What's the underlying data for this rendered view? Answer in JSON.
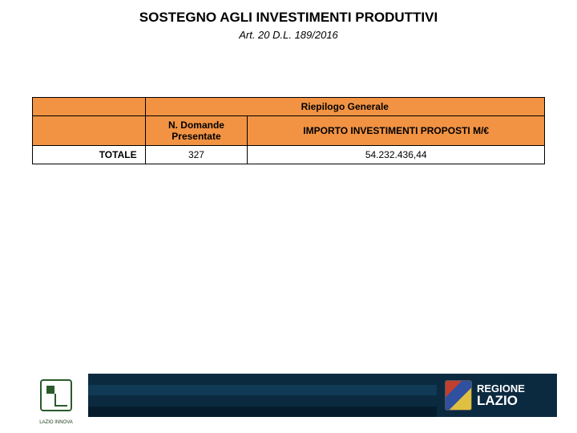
{
  "title": {
    "text": "SOSTEGNO AGLI INVESTIMENTI PRODUTTIVI",
    "fontsize": 17
  },
  "subtitle": {
    "text": "Art. 20 D.L. 189/2016",
    "fontsize": 13
  },
  "table": {
    "header_row_bg": "#f29344",
    "border_color": "#000000",
    "col_widths_pct": [
      22,
      20,
      58
    ],
    "superheader": {
      "span_cols": [
        1,
        2
      ],
      "label": "Riepilogo Generale"
    },
    "columns": [
      "",
      "N. Domande Presentate",
      "IMPORTO INVESTIMENTI PROPOSTI M/€"
    ],
    "rows": [
      {
        "label": "TOTALE",
        "values": [
          "327",
          "54.232.436,44"
        ]
      }
    ]
  },
  "footer": {
    "band_stripes": [
      "#0b2a40",
      "#103a55",
      "#0b2a40",
      "#061c2c"
    ],
    "lazio_innova_caption": "LAZIO INNOVA",
    "regione": {
      "line1": "REGIONE",
      "line2": "LAZIO",
      "line1_size": 13,
      "line2_size": 17
    }
  }
}
